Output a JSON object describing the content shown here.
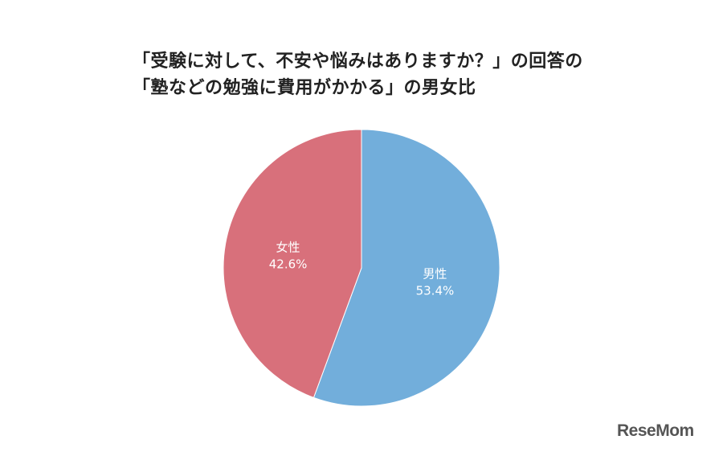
{
  "chart_data": {
    "type": "pie",
    "title_lines": [
      "「受験に対して、不安や悩みはありますか？」の回答の",
      "「塾などの勉強に費用がかかる」の男女比"
    ],
    "slices": [
      {
        "label": "男性",
        "value": 53.4,
        "value_label": "53.4%",
        "color": "#72aedb"
      },
      {
        "label": "女性",
        "value": 42.6,
        "value_label": "42.6%",
        "color": "#d8707b"
      }
    ],
    "start_angle_deg": 0,
    "direction": "clockwise",
    "legend": "none"
  },
  "brand": {
    "logo_text": "ReseMom",
    "logo_color": "#555555"
  }
}
